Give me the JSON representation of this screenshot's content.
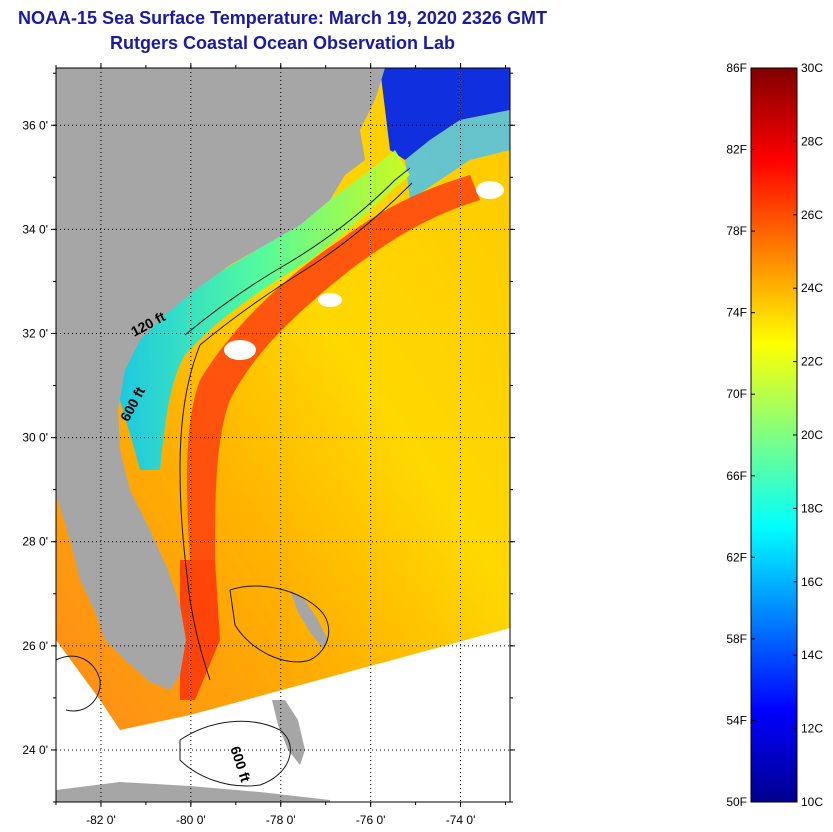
{
  "title": "NOAA-15 Sea Surface Temperature:  March 19, 2020 2326 GMT",
  "subtitle": "Rutgers Coastal Ocean Observation Lab",
  "map": {
    "lat_range": [
      23.0,
      37.1
    ],
    "lon_range": [
      -83.0,
      -72.9
    ],
    "lat_ticks": [
      {
        "value": 36,
        "label": "36 0'"
      },
      {
        "value": 34,
        "label": "34 0'"
      },
      {
        "value": 32,
        "label": "32 0'"
      },
      {
        "value": 30,
        "label": "30 0'"
      },
      {
        "value": 28,
        "label": "28 0'"
      },
      {
        "value": 26,
        "label": "26 0'"
      },
      {
        "value": 24,
        "label": "24 0'"
      }
    ],
    "lon_ticks": [
      {
        "value": -82,
        "label": "-82 0'"
      },
      {
        "value": -80,
        "label": "-80 0'"
      },
      {
        "value": -78,
        "label": "-78 0'"
      },
      {
        "value": -76,
        "label": "-76 0'"
      },
      {
        "value": -74,
        "label": "-74 0'"
      }
    ],
    "contour_labels": [
      {
        "text": "120 ft",
        "lon": -80.9,
        "lat": 32.1,
        "angle": -28
      },
      {
        "text": "600 ft",
        "lon": -81.2,
        "lat": 30.6,
        "angle": -62
      },
      {
        "text": "600 ft",
        "lon": -79.0,
        "lat": 23.7,
        "angle": 72
      }
    ],
    "colors": {
      "land": "#a6a6a6",
      "nodata": "#ffffff",
      "gridline": "#000000",
      "contour": "#1a1a1a"
    }
  },
  "colorbar": {
    "fahrenheit_labels": [
      "86F",
      "82F",
      "78F",
      "74F",
      "70F",
      "66F",
      "62F",
      "58F",
      "54F",
      "50F"
    ],
    "celsius_labels": [
      "30C",
      "28C",
      "26C",
      "24C",
      "22C",
      "20C",
      "18C",
      "16C",
      "14C",
      "12C",
      "10C"
    ],
    "range_c": [
      10,
      30
    ],
    "range_f": [
      50,
      86
    ],
    "colormap": [
      "#00008f",
      "#0000ff",
      "#0080ff",
      "#00ffff",
      "#80ff80",
      "#ffff00",
      "#ff8000",
      "#ff0000",
      "#800000"
    ]
  }
}
